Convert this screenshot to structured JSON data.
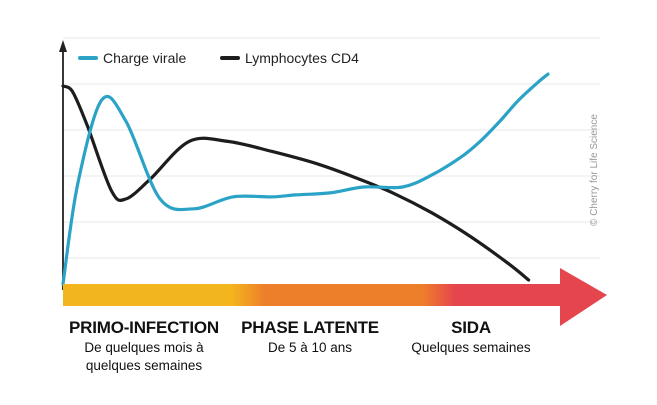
{
  "chart_data": {
    "type": "line",
    "title": "",
    "xlabel": "",
    "ylabel": "",
    "legend": "top-left",
    "grid": true,
    "x_ticks": false,
    "y_ticks": false,
    "series": [
      {
        "name": "Charge virale",
        "color": "#2ba3c7",
        "x": [
          0.0,
          0.03,
          0.08,
          0.13,
          0.2,
          0.27,
          0.35,
          0.43,
          0.48,
          0.55,
          0.62,
          0.7,
          0.76,
          0.82,
          0.86,
          0.9,
          0.94,
          0.98,
          1.0
        ],
        "y": [
          0.0,
          0.5,
          0.93,
          0.82,
          0.43,
          0.38,
          0.44,
          0.44,
          0.45,
          0.46,
          0.49,
          0.49,
          0.55,
          0.64,
          0.72,
          0.82,
          0.93,
          1.02,
          1.06
        ]
      },
      {
        "name": "Lymphocytes CD4",
        "color": "#1d1d1b",
        "x": [
          0.0,
          0.02,
          0.05,
          0.1,
          0.13,
          0.18,
          0.26,
          0.34,
          0.43,
          0.52,
          0.6,
          0.68,
          0.76,
          0.84,
          0.92,
          0.96
        ],
        "y": [
          1.0,
          0.97,
          0.8,
          0.47,
          0.43,
          0.53,
          0.72,
          0.72,
          0.67,
          0.61,
          0.54,
          0.46,
          0.36,
          0.24,
          0.1,
          0.02
        ]
      }
    ],
    "phases": [
      {
        "title": "PRIMO-INFECTION",
        "subtitle_lines": [
          "De quelques mois à",
          "quelques semaines"
        ],
        "color": "#f3b51d",
        "start": 0.0,
        "end": 0.34
      },
      {
        "title": "PHASE LATENTE",
        "subtitle_lines": [
          "De 5 à 10 ans"
        ],
        "color": "#ee7f2a",
        "start": 0.34,
        "end": 0.69
      },
      {
        "title": "SIDA",
        "subtitle_lines": [
          "Quelques semaines"
        ],
        "color": "#e5454d",
        "start": 0.69,
        "end": 1.0
      }
    ],
    "credit": "© Cherry for Life Science"
  }
}
